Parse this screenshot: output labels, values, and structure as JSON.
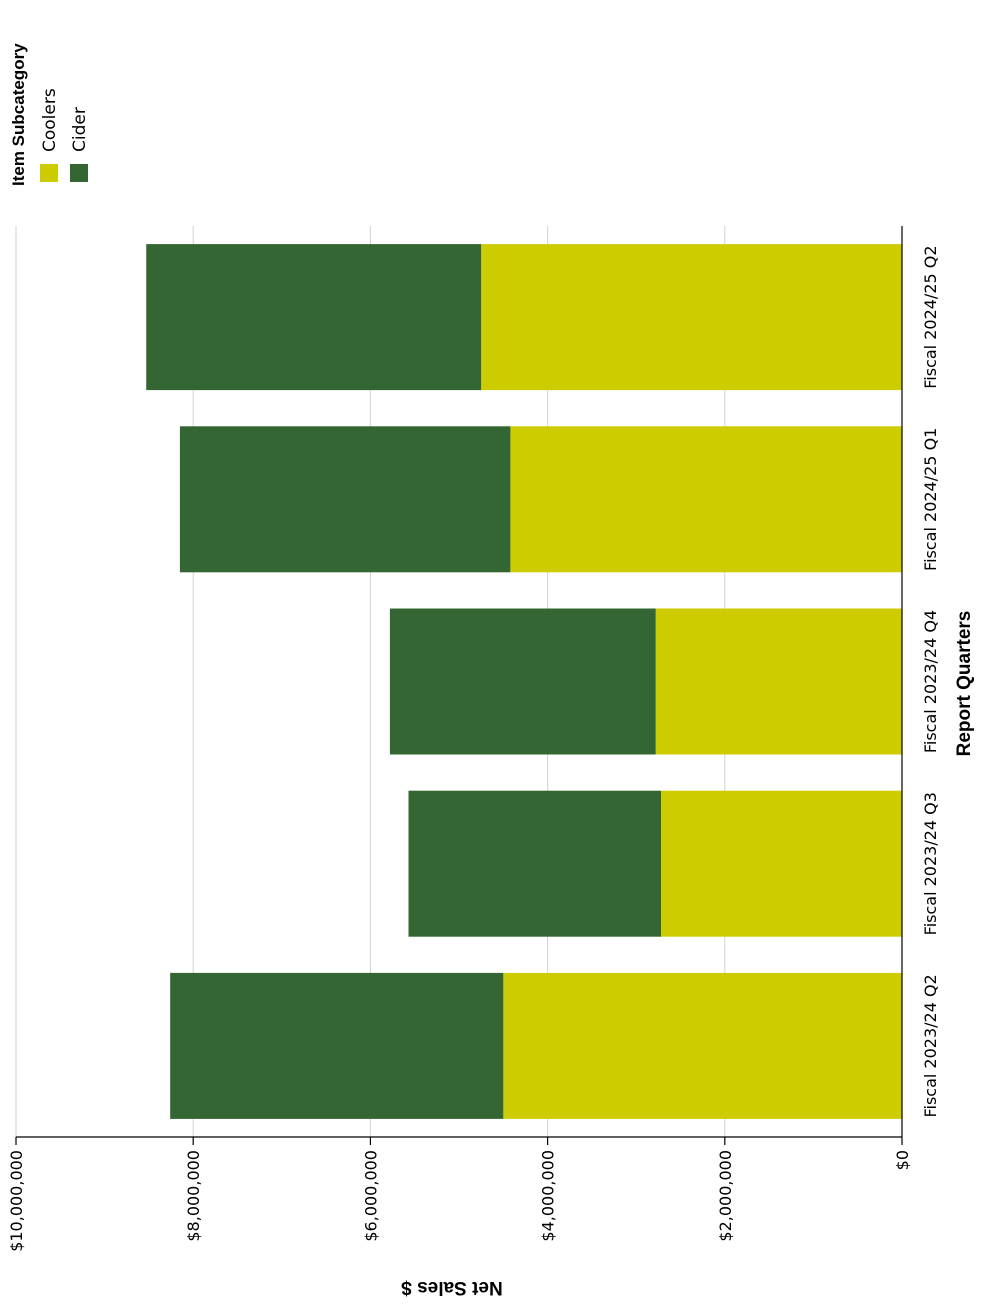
{
  "chart_data": {
    "type": "bar",
    "orientation": "stacked, rotated 90 degrees (category axis along the right edge)",
    "categories": [
      "Fiscal 2023/24 Q2",
      "Fiscal 2023/24 Q3",
      "Fiscal 2023/24 Q4",
      "Fiscal 2024/25 Q1",
      "Fiscal 2024/25 Q2"
    ],
    "series": [
      {
        "name": "Coolers",
        "color": "#cccc00",
        "values": [
          4500000,
          2720000,
          2780000,
          4420000,
          4750000
        ]
      },
      {
        "name": "Cider",
        "color": "#336633",
        "values": [
          3760000,
          2850000,
          3000000,
          3730000,
          3780000
        ]
      }
    ],
    "xlabel": "Report Quarters",
    "ylabel": "Net Sales $",
    "ylim": [
      0,
      10000000
    ],
    "y_ticks": [
      "$0",
      "$2,000,000",
      "$4,000,000",
      "$6,000,000",
      "$8,000,000",
      "$10,000,000"
    ],
    "y_tick_values": [
      0,
      2000000,
      4000000,
      6000000,
      8000000,
      10000000
    ],
    "legend": {
      "title": "Item  Subcategory",
      "placement": "top-left",
      "entries": [
        "Coolers",
        "Cider"
      ]
    },
    "grid": true
  }
}
